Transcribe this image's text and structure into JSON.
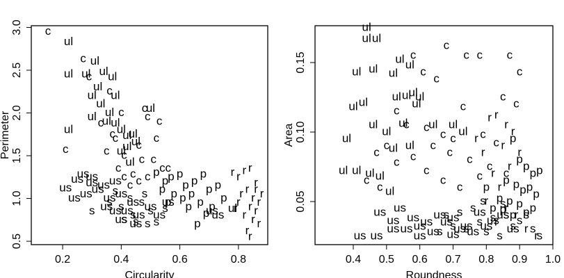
{
  "chart_data": [
    {
      "type": "scatter",
      "x_label": "Circularity",
      "y_label": "Perimeter",
      "xlim": [
        0.093,
        0.9
      ],
      "ylim": [
        0.46,
        3.02
      ],
      "xticks": [
        0.2,
        0.4,
        0.6,
        0.8
      ],
      "yticks": [
        0.5,
        {
          "value": 1,
          "label": "1.0"
        },
        1.5,
        {
          "value": 2,
          "label": "2.0"
        },
        2.5,
        {
          "value": 3,
          "label": "3.0"
        }
      ],
      "series": [
        {
          "name": "ul",
          "color": "#111111",
          "x": [
            0.22,
            0.22,
            0.28,
            0.31,
            0.34,
            0.37,
            0.3,
            0.33,
            0.38,
            0.36,
            0.3,
            0.4,
            0.42,
            0.45,
            0.38,
            0.43,
            0.5,
            0.22,
            0.78,
            0.35,
            0.42,
            0.32,
            0.4,
            0.44
          ],
          "values": [
            2.83,
            2.45,
            2.45,
            2.6,
            2.48,
            2.42,
            2.2,
            2.1,
            2.2,
            2.0,
            1.95,
            1.8,
            1.6,
            1.66,
            1.88,
            1.42,
            2.05,
            1.8,
            0.88,
            1.9,
            1.73,
            2.3,
            1.55,
            1.75
          ]
        },
        {
          "name": "c",
          "color": "#e0393e",
          "x": [
            0.15,
            0.27,
            0.29,
            0.36,
            0.4,
            0.33,
            0.37,
            0.38,
            0.48,
            0.49,
            0.53,
            0.41,
            0.46,
            0.47,
            0.51,
            0.54,
            0.56,
            0.39,
            0.41,
            0.43,
            0.46,
            0.49,
            0.35,
            0.21,
            0.52,
            0.44
          ],
          "values": [
            2.95,
            2.63,
            2.42,
            2.25,
            2.0,
            1.88,
            1.75,
            1.7,
            2.05,
            1.95,
            1.9,
            1.5,
            1.62,
            1.45,
            1.45,
            1.35,
            1.35,
            1.35,
            1.25,
            1.15,
            1.2,
            1.25,
            1.55,
            1.57,
            1.7,
            1.28
          ]
        },
        {
          "name": "us",
          "color": "#a3334f",
          "x": [
            0.21,
            0.25,
            0.3,
            0.34,
            0.38,
            0.28,
            0.32,
            0.36,
            0.4,
            0.44,
            0.24,
            0.27,
            0.35,
            0.42,
            0.46,
            0.5,
            0.4,
            0.45,
            0.53,
            0.56,
            0.71,
            0.73,
            0.3,
            0.38
          ],
          "values": [
            1.12,
            1.22,
            1.18,
            1.15,
            1.2,
            1.05,
            1.1,
            1.0,
            1.05,
            0.95,
            1.0,
            1.28,
            0.9,
            0.85,
            0.8,
            0.9,
            0.75,
            0.7,
            0.8,
            0.95,
            0.85,
            0.8,
            1.25,
            0.85
          ]
        },
        {
          "name": "s",
          "color": "#6d4fa3",
          "x": [
            0.3,
            0.36,
            0.4,
            0.44,
            0.47,
            0.5,
            0.52,
            0.41,
            0.45,
            0.49,
            0.48,
            0.55,
            0.43,
            0.38
          ],
          "values": [
            0.85,
            0.95,
            0.9,
            0.8,
            0.95,
            0.85,
            0.72,
            0.75,
            0.72,
            0.7,
            1.05,
            0.88,
            1.0,
            1.08
          ]
        },
        {
          "name": "p",
          "color": "#4fb03a",
          "x": [
            0.52,
            0.55,
            0.57,
            0.6,
            0.62,
            0.65,
            0.68,
            0.7,
            0.73,
            0.58,
            0.61,
            0.64,
            0.67,
            0.71,
            0.54,
            0.63,
            0.69,
            0.66,
            0.56,
            0.75
          ],
          "values": [
            1.3,
            1.2,
            1.25,
            1.28,
            1.15,
            1.2,
            1.28,
            1.1,
            1.15,
            1.05,
            1.0,
            1.05,
            0.95,
            0.9,
            1.1,
            0.9,
            0.82,
            0.7,
            0.95,
            1.0
          ]
        },
        {
          "name": "r",
          "color": "#2560ad",
          "x": [
            0.78,
            0.8,
            0.82,
            0.84,
            0.86,
            0.88,
            0.83,
            0.85,
            0.87,
            0.81,
            0.84,
            0.86,
            0.79,
            0.82,
            0.85,
            0.87,
            0.83,
            0.8,
            0.84,
            0.86
          ],
          "values": [
            1.3,
            1.25,
            1.32,
            1.35,
            1.18,
            1.05,
            1.1,
            1.0,
            0.95,
            1.05,
            0.9,
            0.85,
            0.88,
            0.8,
            0.75,
            0.7,
            0.62,
            0.95,
            0.55,
            1.1
          ]
        }
      ]
    },
    {
      "type": "scatter",
      "x_label": "Roundness",
      "y_label": "Area",
      "xlim": [
        0.285,
        1.0
      ],
      "ylim": [
        0.019,
        0.1765
      ],
      "xticks": [
        0.4,
        0.5,
        0.6,
        0.7,
        0.8,
        0.9,
        {
          "value": 1,
          "label": "1.0"
        }
      ],
      "yticks": [
        0.05,
        {
          "value": 0.1,
          "label": "0.10"
        },
        0.15
      ],
      "series": [
        {
          "name": "ul",
          "color": "#111111",
          "x": [
            0.44,
            0.44,
            0.47,
            0.41,
            0.46,
            0.52,
            0.54,
            0.57,
            0.56,
            0.53,
            0.58,
            0.59,
            0.6,
            0.4,
            0.43,
            0.46,
            0.5,
            0.55,
            0.38,
            0.37,
            0.41,
            0.45,
            0.48,
            0.52,
            0.57,
            0.64,
            0.7,
            0.73,
            0.51
          ],
          "values": [
            0.175,
            0.167,
            0.167,
            0.143,
            0.145,
            0.142,
            0.152,
            0.148,
            0.126,
            0.125,
            0.128,
            0.12,
            0.125,
            0.118,
            0.121,
            0.105,
            0.1,
            0.106,
            0.095,
            0.072,
            0.072,
            0.07,
            0.068,
            0.088,
            0.09,
            0.105,
            0.105,
            0.1,
            0.057
          ]
        },
        {
          "name": "c",
          "color": "#e0393e",
          "x": [
            0.68,
            0.74,
            0.78,
            0.87,
            0.9,
            0.58,
            0.61,
            0.65,
            0.73,
            0.85,
            0.89,
            0.53,
            0.56,
            0.62,
            0.67,
            0.7,
            0.79,
            0.83,
            0.47,
            0.5,
            0.58,
            0.64,
            0.69,
            0.75,
            0.81,
            0.86,
            0.44,
            0.48,
            0.53,
            0.62,
            0.67,
            0.72,
            0.78
          ],
          "values": [
            0.162,
            0.155,
            0.155,
            0.155,
            0.143,
            0.155,
            0.143,
            0.138,
            0.118,
            0.125,
            0.12,
            0.115,
            0.105,
            0.103,
            0.098,
            0.095,
            0.098,
            0.092,
            0.085,
            0.09,
            0.082,
            0.09,
            0.085,
            0.08,
            0.075,
            0.07,
            0.065,
            0.06,
            0.078,
            0.072,
            0.065,
            0.06,
            0.068
          ]
        },
        {
          "name": "us",
          "color": "#a3334f",
          "x": [
            0.42,
            0.47,
            0.52,
            0.56,
            0.6,
            0.64,
            0.68,
            0.72,
            0.76,
            0.8,
            0.85,
            0.48,
            0.54,
            0.58,
            0.62,
            0.66,
            0.7,
            0.74,
            0.78,
            0.82,
            0.88,
            0.52,
            0.6,
            0.7
          ],
          "values": [
            0.025,
            0.025,
            0.036,
            0.03,
            0.032,
            0.028,
            0.035,
            0.03,
            0.028,
            0.032,
            0.04,
            0.042,
            0.045,
            0.038,
            0.035,
            0.04,
            0.038,
            0.032,
            0.042,
            0.036,
            0.03,
            0.03,
            0.025,
            0.026
          ]
        },
        {
          "name": "s",
          "color": "#6d4fa3",
          "x": [
            0.66,
            0.7,
            0.74,
            0.78,
            0.82,
            0.86,
            0.9,
            0.94,
            0.72,
            0.76,
            0.8,
            0.84,
            0.88,
            0.92,
            0.96,
            0.68,
            0.79,
            0.85
          ],
          "values": [
            0.028,
            0.032,
            0.03,
            0.035,
            0.038,
            0.04,
            0.036,
            0.03,
            0.042,
            0.045,
            0.028,
            0.025,
            0.032,
            0.04,
            0.025,
            0.04,
            0.05,
            0.048
          ]
        },
        {
          "name": "p",
          "color": "#4fb03a",
          "x": [
            0.88,
            0.9,
            0.92,
            0.94,
            0.96,
            0.86,
            0.89,
            0.91,
            0.93,
            0.84,
            0.87,
            0.9,
            0.95,
            0.82,
            0.85,
            0.88,
            0.92,
            0.8,
            0.94
          ],
          "values": [
            0.095,
            0.08,
            0.075,
            0.07,
            0.072,
            0.065,
            0.062,
            0.058,
            0.06,
            0.052,
            0.05,
            0.048,
            0.055,
            0.045,
            0.044,
            0.04,
            0.042,
            0.06,
            0.045
          ]
        },
        {
          "name": "r",
          "color": "#2560ad",
          "x": [
            0.81,
            0.83,
            0.86,
            0.88,
            0.77,
            0.79,
            0.85,
            0.87,
            0.9,
            0.82,
            0.84,
            0.86,
            0.8,
            0.89,
            0.92,
            0.95,
            0.83
          ],
          "values": [
            0.11,
            0.112,
            0.105,
            0.1,
            0.095,
            0.085,
            0.09,
            0.075,
            0.085,
            0.07,
            0.06,
            0.045,
            0.05,
            0.04,
            0.03,
            0.025,
            0.035
          ]
        }
      ]
    }
  ]
}
